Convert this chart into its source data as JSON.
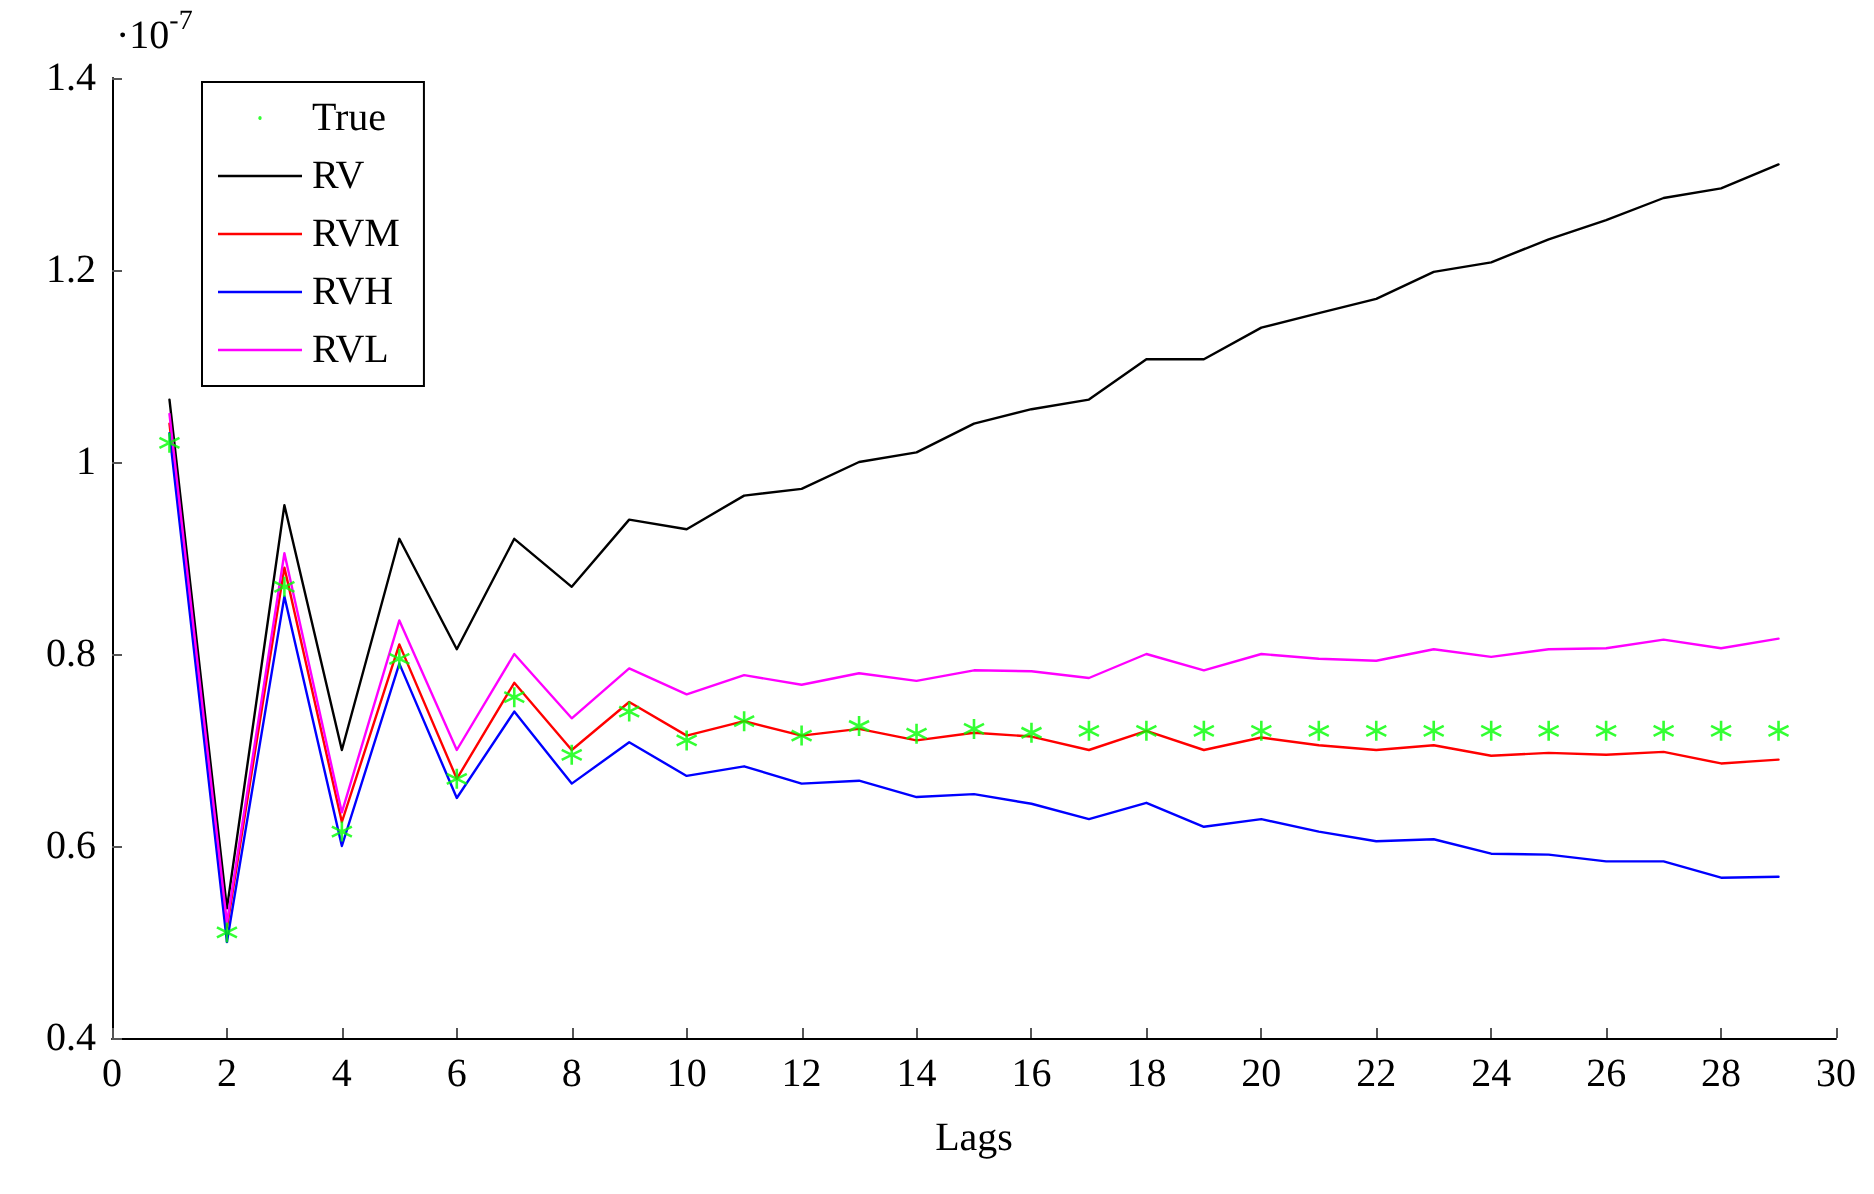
{
  "chart_data": {
    "type": "line",
    "xlabel": "Lags",
    "annotations": [
      "·10$^{-7}$"
    ],
    "x": [
      1,
      2,
      3,
      4,
      5,
      6,
      7,
      8,
      9,
      10,
      11,
      12,
      13,
      14,
      15,
      16,
      17,
      18,
      19,
      20,
      21,
      22,
      23,
      24,
      25,
      26,
      27,
      28,
      29
    ],
    "series": [
      {
        "name": "True",
        "type": "scatter",
        "marker": "cross",
        "color": "#00ff00",
        "values": [
          1.02,
          0.51,
          0.87,
          0.615,
          0.795,
          0.67,
          0.755,
          0.695,
          0.74,
          0.71,
          0.73,
          0.715,
          0.725,
          0.717,
          0.722,
          0.718,
          0.72,
          0.72,
          0.72,
          0.72,
          0.72,
          0.72,
          0.72,
          0.72,
          0.72,
          0.72,
          0.72,
          0.72,
          0.72
        ]
      },
      {
        "name": "RV",
        "color": "#000000",
        "values": [
          1.065,
          0.535,
          0.955,
          0.7,
          0.92,
          0.805,
          0.92,
          0.87,
          0.94,
          0.93,
          0.965,
          0.972,
          1.0,
          1.01,
          1.04,
          1.055,
          1.065,
          1.107,
          1.107,
          1.14,
          1.155,
          1.17,
          1.198,
          1.208,
          1.232,
          1.252,
          1.275,
          1.285,
          1.31
        ]
      },
      {
        "name": "RVM",
        "color": "#ff0000",
        "values": [
          1.04,
          0.515,
          0.89,
          0.625,
          0.81,
          0.67,
          0.77,
          0.7,
          0.75,
          0.715,
          0.73,
          0.715,
          0.722,
          0.71,
          0.718,
          0.714,
          0.7,
          0.72,
          0.7,
          0.713,
          0.705,
          0.7,
          0.705,
          0.694,
          0.697,
          0.695,
          0.698,
          0.686,
          0.69
        ]
      },
      {
        "name": "RVH",
        "color": "#0000ff",
        "values": [
          1.03,
          0.5,
          0.86,
          0.6,
          0.79,
          0.65,
          0.74,
          0.665,
          0.708,
          0.673,
          0.683,
          0.665,
          0.668,
          0.651,
          0.654,
          0.644,
          0.628,
          0.645,
          0.62,
          0.628,
          0.615,
          0.605,
          0.607,
          0.592,
          0.591,
          0.584,
          0.584,
          0.567,
          0.568
        ]
      },
      {
        "name": "RVL",
        "color": "#ff00ff",
        "values": [
          1.05,
          0.52,
          0.905,
          0.635,
          0.835,
          0.7,
          0.8,
          0.733,
          0.785,
          0.758,
          0.778,
          0.768,
          0.78,
          0.772,
          0.783,
          0.782,
          0.775,
          0.8,
          0.783,
          0.8,
          0.795,
          0.793,
          0.805,
          0.797,
          0.805,
          0.806,
          0.815,
          0.806,
          0.816
        ]
      }
    ],
    "marker": "none",
    "line_style": "solid",
    "legend": "top left",
    "grid": false,
    "xlim": [
      0,
      30
    ],
    "xticks": [
      0,
      2,
      4,
      6,
      8,
      10,
      12,
      14,
      16,
      18,
      20,
      22,
      24,
      26,
      28,
      30
    ],
    "ylim": [
      0.4,
      1.4
    ],
    "yticks": [
      0.4,
      0.6,
      0.8,
      1,
      1.2,
      1.4
    ]
  }
}
